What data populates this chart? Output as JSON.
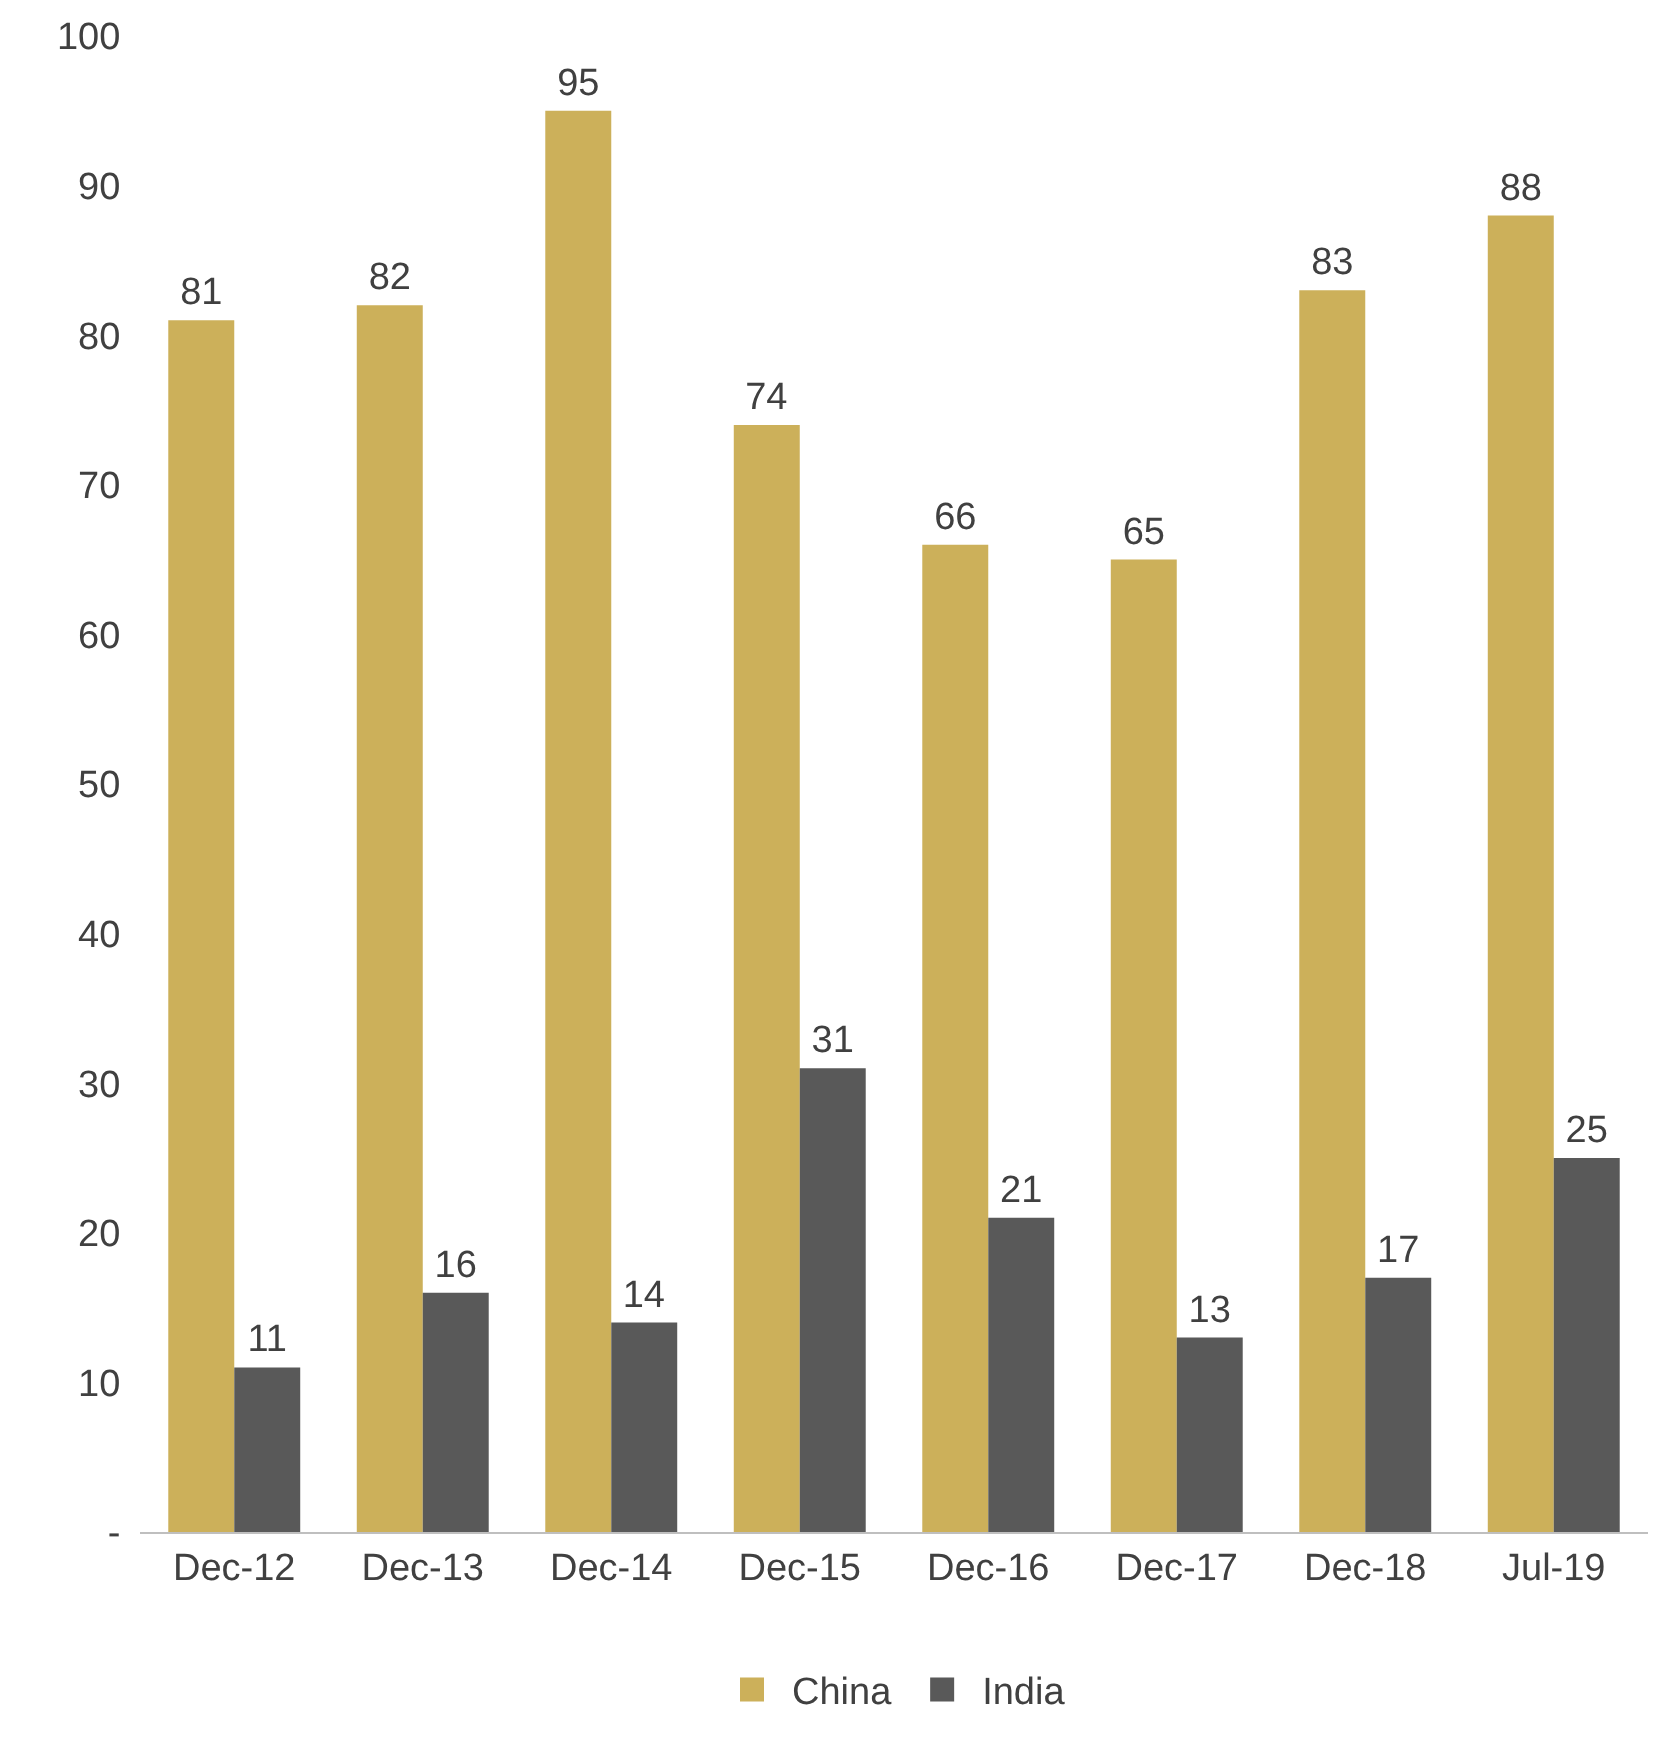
{
  "chart_data": {
    "type": "bar",
    "categories": [
      "Dec-12",
      "Dec-13",
      "Dec-14",
      "Dec-15",
      "Dec-16",
      "Dec-17",
      "Dec-18",
      "Jul-19"
    ],
    "series": [
      {
        "name": "China",
        "color": "#ccb05a",
        "values": [
          81,
          82,
          95,
          74,
          66,
          65,
          83,
          88
        ]
      },
      {
        "name": "India",
        "color": "#595959",
        "values": [
          11,
          16,
          14,
          31,
          21,
          13,
          17,
          25
        ]
      }
    ],
    "ylim": [
      0,
      100
    ],
    "yticks": [
      {
        "value": 0,
        "label": "-"
      },
      10,
      20,
      30,
      40,
      50,
      60,
      70,
      80,
      90,
      100
    ],
    "data_labels": true,
    "legend": "bottom",
    "grid": false
  }
}
